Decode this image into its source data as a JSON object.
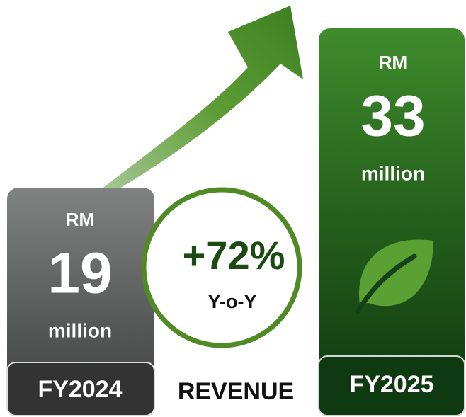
{
  "bars": [
    {
      "currency": "RM",
      "amount": "19",
      "unit": "million",
      "label": "FY2024"
    },
    {
      "currency": "RM",
      "amount": "33",
      "unit": "million",
      "label": "FY2025"
    }
  ],
  "growth": {
    "change": "+72%",
    "period": "Y-o-Y"
  },
  "caption": "REVENUE"
}
